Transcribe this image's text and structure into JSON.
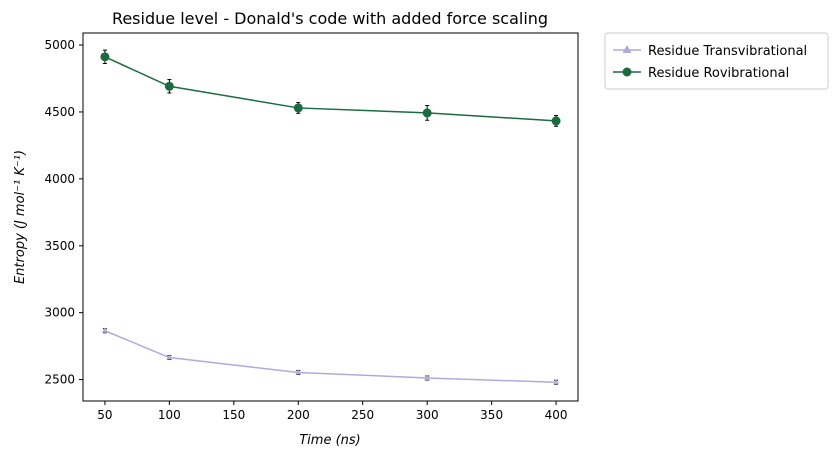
{
  "chart_data": {
    "type": "line",
    "title": "Residue level - Donald's code with added force scaling",
    "xlabel": "Time (ns)",
    "ylabel": "Entropy (J mol⁻¹ K⁻¹)",
    "xlim": [
      33,
      417
    ],
    "ylim": [
      2340,
      5090
    ],
    "xticks": [
      50,
      100,
      150,
      200,
      250,
      300,
      350,
      400
    ],
    "yticks": [
      2500,
      3000,
      3500,
      4000,
      4500,
      5000
    ],
    "grid": false,
    "legend_position": "outside-upper-right",
    "series": [
      {
        "name": "Residue Transvibrational",
        "color": "#b3a9dc",
        "marker": "triangle",
        "x": [
          50,
          100,
          200,
          300,
          400
        ],
        "y": [
          2865,
          2665,
          2553,
          2512,
          2480
        ],
        "err": [
          15,
          15,
          15,
          15,
          15
        ]
      },
      {
        "name": "Residue Rovibrational",
        "color": "#1b6b40",
        "marker": "circle",
        "x": [
          50,
          100,
          200,
          300,
          400
        ],
        "y": [
          4912,
          4692,
          4530,
          4493,
          4433
        ],
        "err": [
          50,
          50,
          40,
          55,
          40
        ]
      }
    ]
  }
}
